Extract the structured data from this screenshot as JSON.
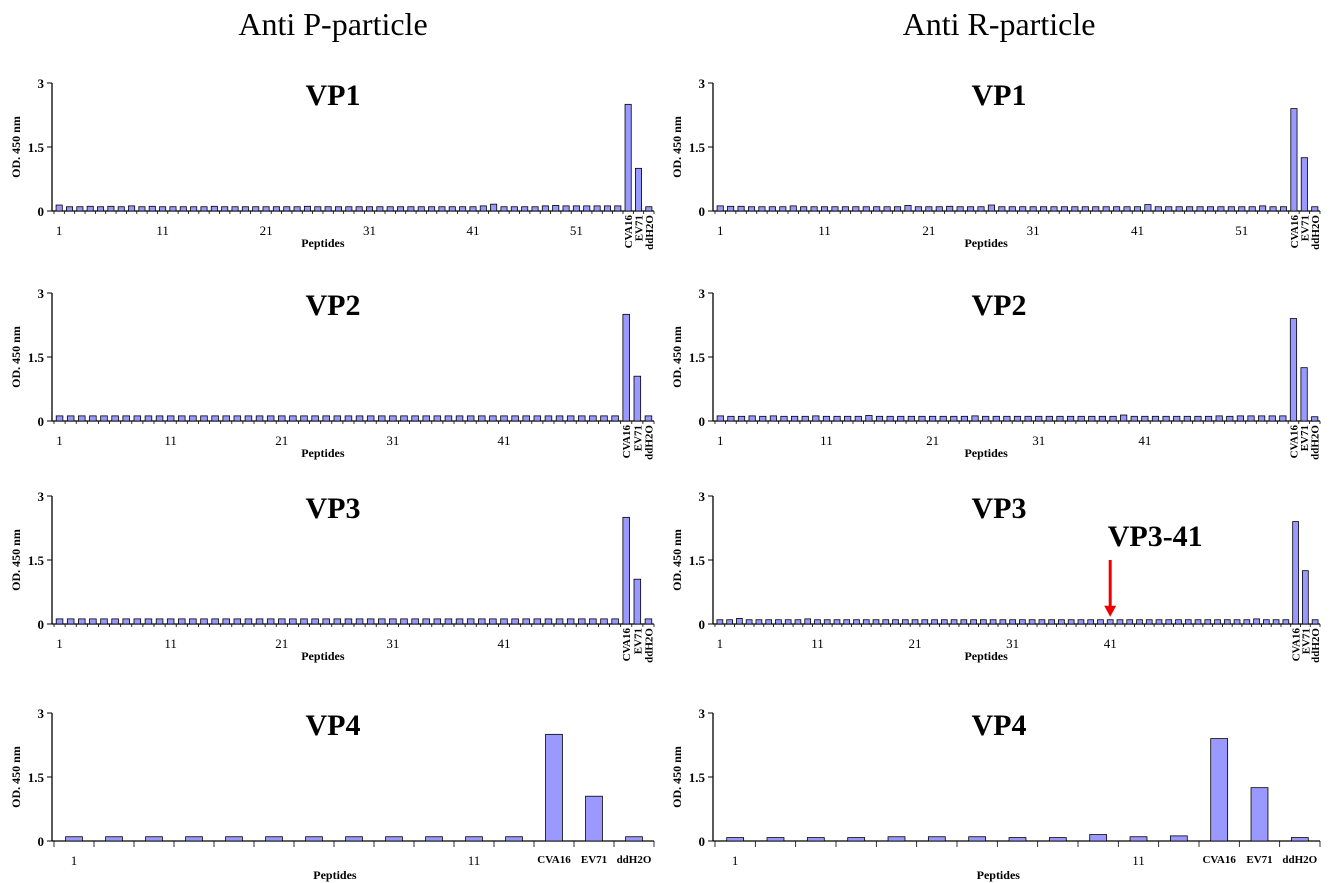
{
  "columns": [
    {
      "title": "Anti P-particle"
    },
    {
      "title": "Anti R-particle"
    }
  ],
  "colors": {
    "bar_fill": "#9999ff",
    "bar_stroke": "#000000",
    "arrow": "#ee0000"
  },
  "chart_data": [
    {
      "type": "bar",
      "title": "VP1",
      "xlabel": "Peptides",
      "ylabel": "OD. 450 nm",
      "ylim": [
        0,
        3
      ],
      "yticks": [
        "0",
        "1.5",
        "3"
      ],
      "x_tick_labels": [
        {
          "index": 0,
          "label": "1"
        },
        {
          "index": 10,
          "label": "11"
        },
        {
          "index": 20,
          "label": "21"
        },
        {
          "index": 30,
          "label": "31"
        },
        {
          "index": 40,
          "label": "41"
        },
        {
          "index": 50,
          "label": "51"
        }
      ],
      "peptide_values": [
        0.14,
        0.1,
        0.1,
        0.11,
        0.1,
        0.11,
        0.1,
        0.12,
        0.1,
        0.11,
        0.1,
        0.1,
        0.1,
        0.1,
        0.1,
        0.11,
        0.1,
        0.1,
        0.1,
        0.1,
        0.1,
        0.1,
        0.1,
        0.1,
        0.11,
        0.1,
        0.1,
        0.1,
        0.1,
        0.1,
        0.1,
        0.1,
        0.1,
        0.1,
        0.1,
        0.1,
        0.1,
        0.1,
        0.1,
        0.1,
        0.1,
        0.12,
        0.16,
        0.1,
        0.1,
        0.1,
        0.1,
        0.12,
        0.13,
        0.12,
        0.12,
        0.12,
        0.12,
        0.12,
        0.12
      ],
      "controls": [
        {
          "label": "CVA16",
          "value": 2.5
        },
        {
          "label": "EV71",
          "value": 1.0
        },
        {
          "label": "ddH2O",
          "value": 0.1
        }
      ]
    },
    {
      "type": "bar",
      "title": "VP1",
      "xlabel": "Peptides",
      "ylabel": "OD. 450 nm",
      "ylim": [
        0,
        3
      ],
      "yticks": [
        "0",
        "1.5",
        "3"
      ],
      "x_tick_labels": [
        {
          "index": 0,
          "label": "1"
        },
        {
          "index": 10,
          "label": "11"
        },
        {
          "index": 20,
          "label": "21"
        },
        {
          "index": 30,
          "label": "31"
        },
        {
          "index": 40,
          "label": "41"
        },
        {
          "index": 50,
          "label": "51"
        }
      ],
      "peptide_values": [
        0.12,
        0.11,
        0.11,
        0.1,
        0.1,
        0.1,
        0.1,
        0.12,
        0.1,
        0.1,
        0.1,
        0.1,
        0.1,
        0.1,
        0.1,
        0.1,
        0.1,
        0.1,
        0.13,
        0.1,
        0.1,
        0.1,
        0.11,
        0.1,
        0.1,
        0.1,
        0.14,
        0.1,
        0.1,
        0.1,
        0.1,
        0.1,
        0.1,
        0.1,
        0.1,
        0.1,
        0.1,
        0.1,
        0.1,
        0.1,
        0.1,
        0.15,
        0.1,
        0.1,
        0.1,
        0.1,
        0.1,
        0.1,
        0.1,
        0.1,
        0.1,
        0.1,
        0.12,
        0.1,
        0.1
      ],
      "controls": [
        {
          "label": "CVA16",
          "value": 2.4
        },
        {
          "label": "EV71",
          "value": 1.25
        },
        {
          "label": "ddH2O",
          "value": 0.1
        }
      ]
    },
    {
      "type": "bar",
      "title": "VP2",
      "xlabel": "Peptides",
      "ylabel": "OD. 450 nm",
      "ylim": [
        0,
        3
      ],
      "yticks": [
        "0",
        "1.5",
        "3"
      ],
      "x_tick_labels": [
        {
          "index": 0,
          "label": "1"
        },
        {
          "index": 10,
          "label": "11"
        },
        {
          "index": 20,
          "label": "21"
        },
        {
          "index": 30,
          "label": "31"
        },
        {
          "index": 40,
          "label": "41"
        }
      ],
      "peptide_values": [
        0.12,
        0.12,
        0.12,
        0.12,
        0.12,
        0.12,
        0.12,
        0.12,
        0.12,
        0.12,
        0.12,
        0.12,
        0.12,
        0.12,
        0.12,
        0.12,
        0.12,
        0.12,
        0.12,
        0.12,
        0.12,
        0.12,
        0.12,
        0.12,
        0.12,
        0.12,
        0.12,
        0.12,
        0.12,
        0.12,
        0.12,
        0.12,
        0.12,
        0.12,
        0.12,
        0.12,
        0.12,
        0.12,
        0.12,
        0.12,
        0.12,
        0.12,
        0.12,
        0.12,
        0.12,
        0.12,
        0.12,
        0.12,
        0.12,
        0.12,
        0.12
      ],
      "controls": [
        {
          "label": "CVA16",
          "value": 2.5
        },
        {
          "label": "EV71",
          "value": 1.05
        },
        {
          "label": "ddH2O",
          "value": 0.12
        }
      ]
    },
    {
      "type": "bar",
      "title": "VP2",
      "xlabel": "Peptides",
      "ylabel": "OD. 450 nm",
      "ylim": [
        0,
        3
      ],
      "yticks": [
        "0",
        "1.5",
        "3"
      ],
      "x_tick_labels": [
        {
          "index": 0,
          "label": "1"
        },
        {
          "index": 10,
          "label": "11"
        },
        {
          "index": 20,
          "label": "21"
        },
        {
          "index": 30,
          "label": "31"
        },
        {
          "index": 40,
          "label": "41"
        }
      ],
      "peptide_values": [
        0.12,
        0.11,
        0.11,
        0.12,
        0.11,
        0.12,
        0.11,
        0.11,
        0.11,
        0.12,
        0.11,
        0.11,
        0.11,
        0.11,
        0.13,
        0.11,
        0.11,
        0.11,
        0.11,
        0.11,
        0.11,
        0.11,
        0.11,
        0.11,
        0.12,
        0.11,
        0.11,
        0.11,
        0.11,
        0.11,
        0.11,
        0.11,
        0.11,
        0.11,
        0.11,
        0.11,
        0.11,
        0.11,
        0.14,
        0.11,
        0.11,
        0.11,
        0.11,
        0.11,
        0.11,
        0.11,
        0.11,
        0.12,
        0.11,
        0.12,
        0.12,
        0.12,
        0.12,
        0.12
      ],
      "controls": [
        {
          "label": "CVA16",
          "value": 2.4
        },
        {
          "label": "EV71",
          "value": 1.25
        },
        {
          "label": "ddH2O",
          "value": 0.1
        }
      ]
    },
    {
      "type": "bar",
      "title": "VP3",
      "xlabel": "Peptides",
      "ylabel": "OD. 450 nm",
      "ylim": [
        0,
        3
      ],
      "yticks": [
        "0",
        "1.5",
        "3"
      ],
      "x_tick_labels": [
        {
          "index": 0,
          "label": "1"
        },
        {
          "index": 10,
          "label": "11"
        },
        {
          "index": 20,
          "label": "21"
        },
        {
          "index": 30,
          "label": "31"
        },
        {
          "index": 40,
          "label": "41"
        }
      ],
      "peptide_values": [
        0.12,
        0.12,
        0.12,
        0.12,
        0.12,
        0.12,
        0.12,
        0.12,
        0.12,
        0.12,
        0.12,
        0.12,
        0.12,
        0.12,
        0.12,
        0.12,
        0.12,
        0.12,
        0.12,
        0.12,
        0.12,
        0.12,
        0.12,
        0.12,
        0.12,
        0.12,
        0.12,
        0.12,
        0.12,
        0.12,
        0.12,
        0.12,
        0.12,
        0.12,
        0.12,
        0.12,
        0.12,
        0.12,
        0.12,
        0.12,
        0.12,
        0.12,
        0.12,
        0.12,
        0.12,
        0.12,
        0.12,
        0.12,
        0.12,
        0.12,
        0.12
      ],
      "controls": [
        {
          "label": "CVA16",
          "value": 2.5
        },
        {
          "label": "EV71",
          "value": 1.05
        },
        {
          "label": "ddH2O",
          "value": 0.12
        }
      ]
    },
    {
      "type": "bar",
      "title": "VP3",
      "xlabel": "Peptides",
      "ylabel": "OD. 450 nm",
      "ylim": [
        0,
        3
      ],
      "yticks": [
        "0",
        "1.5",
        "3"
      ],
      "x_tick_labels": [
        {
          "index": 0,
          "label": "1"
        },
        {
          "index": 10,
          "label": "11"
        },
        {
          "index": 20,
          "label": "21"
        },
        {
          "index": 30,
          "label": "31"
        },
        {
          "index": 40,
          "label": "41"
        }
      ],
      "peptide_values": [
        0.1,
        0.1,
        0.13,
        0.1,
        0.1,
        0.1,
        0.1,
        0.1,
        0.1,
        0.12,
        0.1,
        0.1,
        0.1,
        0.1,
        0.1,
        0.1,
        0.1,
        0.1,
        0.1,
        0.1,
        0.1,
        0.1,
        0.1,
        0.1,
        0.1,
        0.1,
        0.1,
        0.1,
        0.1,
        0.1,
        0.1,
        0.1,
        0.1,
        0.1,
        0.1,
        0.1,
        0.1,
        0.1,
        0.1,
        0.1,
        0.1,
        0.1,
        0.1,
        0.1,
        0.1,
        0.1,
        0.1,
        0.1,
        0.1,
        0.1,
        0.1,
        0.1,
        0.1,
        0.1,
        0.1,
        0.12,
        0.1,
        0.1,
        0.1
      ],
      "controls": [
        {
          "label": "CVA16",
          "value": 2.4
        },
        {
          "label": "EV71",
          "value": 1.25
        },
        {
          "label": "ddH2O",
          "value": 0.1
        }
      ],
      "annotation": {
        "text": "VP3-41",
        "index": 40
      }
    },
    {
      "type": "bar",
      "title": "VP4",
      "xlabel": "Peptides",
      "ylabel": "OD. 450 nm",
      "ylim": [
        0,
        3
      ],
      "yticks": [
        "0",
        "1.5",
        "3"
      ],
      "x_tick_labels": [
        {
          "index": 0,
          "label": "1"
        },
        {
          "index": 10,
          "label": "11"
        }
      ],
      "peptide_values": [
        0.1,
        0.1,
        0.1,
        0.1,
        0.1,
        0.1,
        0.1,
        0.1,
        0.1,
        0.1,
        0.1,
        0.1
      ],
      "controls": [
        {
          "label": "CVA16",
          "value": 2.5
        },
        {
          "label": "EV71",
          "value": 1.05
        },
        {
          "label": "ddH2O",
          "value": 0.1
        }
      ]
    },
    {
      "type": "bar",
      "title": "VP4",
      "xlabel": "Peptides",
      "ylabel": "OD. 450 nm",
      "ylim": [
        0,
        3
      ],
      "yticks": [
        "0",
        "1.5",
        "3"
      ],
      "x_tick_labels": [
        {
          "index": 0,
          "label": "1"
        },
        {
          "index": 10,
          "label": "11"
        }
      ],
      "peptide_values": [
        0.08,
        0.08,
        0.08,
        0.08,
        0.1,
        0.1,
        0.1,
        0.08,
        0.08,
        0.15,
        0.1,
        0.12
      ],
      "controls": [
        {
          "label": "CVA16",
          "value": 2.4
        },
        {
          "label": "EV71",
          "value": 1.25
        },
        {
          "label": "ddH2O",
          "value": 0.08
        }
      ]
    }
  ]
}
